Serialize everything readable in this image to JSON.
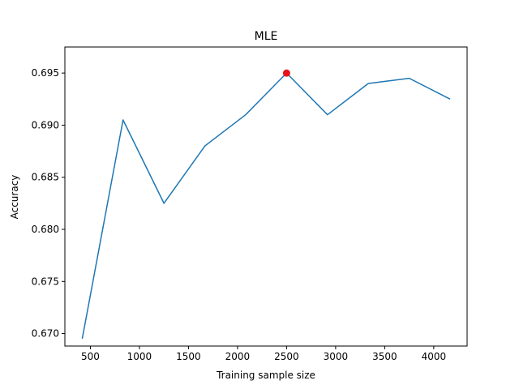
{
  "chart_data": {
    "type": "line",
    "title": "MLE",
    "xlabel": "Training sample size",
    "ylabel": "Accuracy",
    "xlim": [
      240,
      4340
    ],
    "ylim": [
      0.6688,
      0.6975
    ],
    "xticks": [
      500,
      1000,
      1500,
      2000,
      2500,
      3000,
      3500,
      4000
    ],
    "yticks": [
      0.67,
      0.675,
      0.68,
      0.685,
      0.69,
      0.695
    ],
    "ytick_labels": [
      "0.670",
      "0.675",
      "0.680",
      "0.685",
      "0.690",
      "0.695"
    ],
    "grid": false,
    "series": [
      {
        "color": "#1f77b4",
        "x": [
          417,
          833,
          1250,
          1667,
          2083,
          2500,
          2917,
          3333,
          3750,
          4167
        ],
        "y": [
          0.6695,
          0.6905,
          0.6825,
          0.688,
          0.691,
          0.695,
          0.691,
          0.694,
          0.6945,
          0.6925
        ]
      }
    ],
    "highlight": {
      "x": 2500,
      "y": 0.695,
      "color": "#e8141c"
    }
  }
}
